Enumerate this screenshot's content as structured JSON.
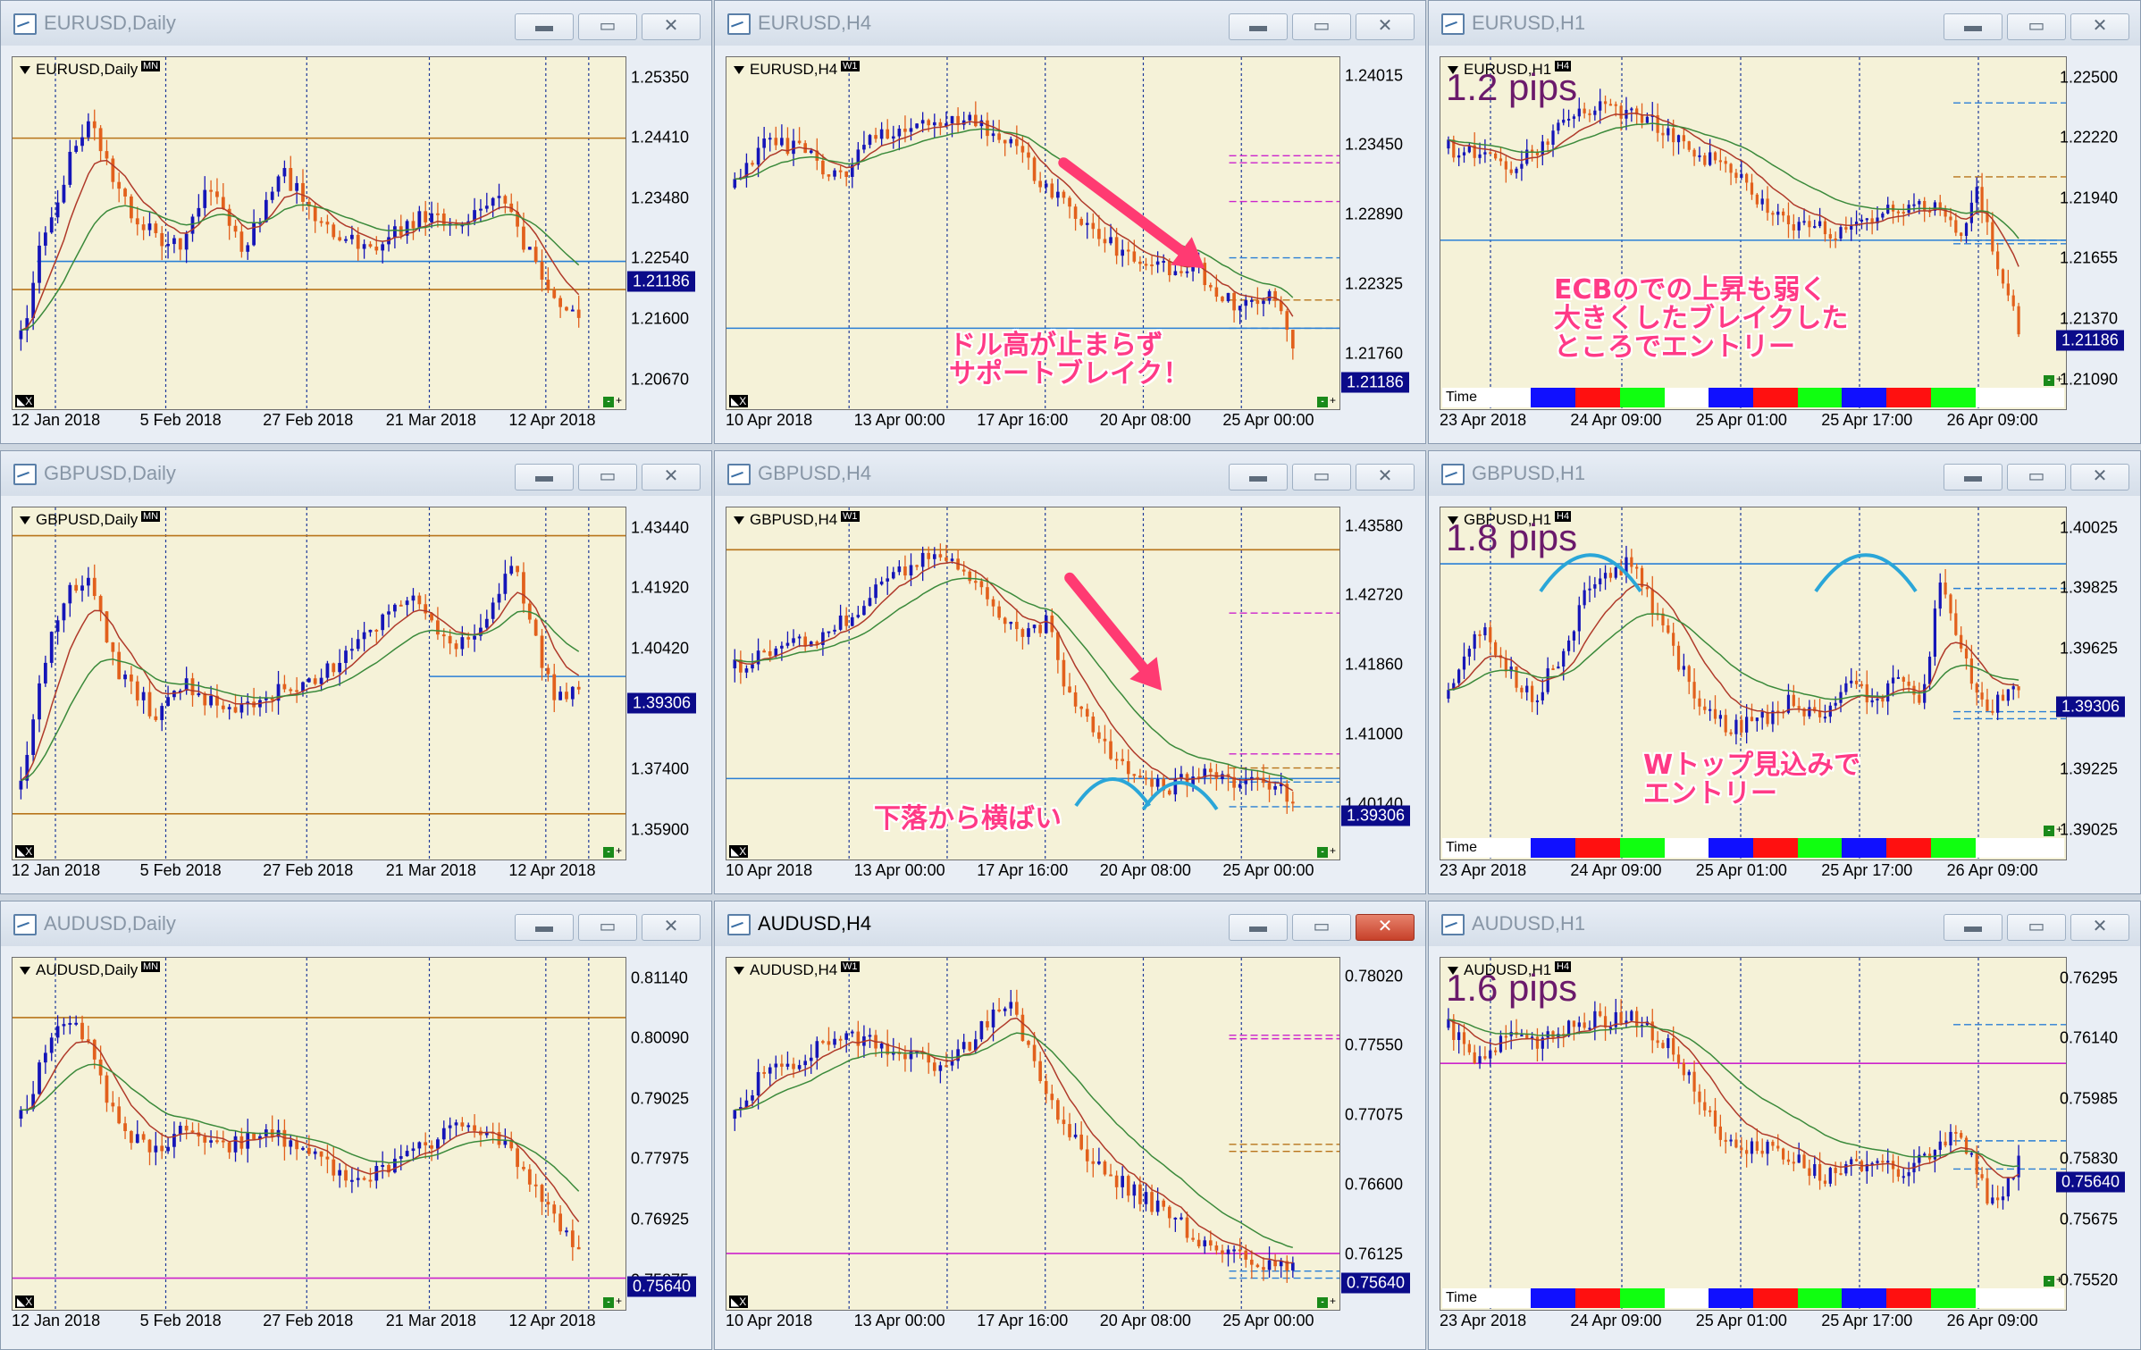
{
  "colors": {
    "bull": "#1515b8",
    "bear": "#e2601c",
    "ma_red": "#b03a2a",
    "ma_green": "#3b8a3b",
    "hline_orange": "#b8741a",
    "hline_blue": "#2a7fd6",
    "hline_magenta": "#cc22cc",
    "arrow_pink": "#ff3a72",
    "arc_blue": "#2aa6d8"
  },
  "windows": [
    {
      "title": "EURUSD,Daily",
      "symbol": "EURUSD,Daily",
      "tf_badge": "MN",
      "prices": [
        "1.25350",
        "1.24410",
        "1.23480",
        "1.22540",
        "1.21600",
        "1.20670"
      ],
      "current": "1.21186",
      "dates": [
        "12 Jan 2018",
        "5 Feb 2018",
        "27 Feb 2018",
        "21 Mar 2018",
        "12 Apr 2018"
      ]
    },
    {
      "title": "EURUSD,H4",
      "symbol": "EURUSD,H4",
      "tf_badge": "W1",
      "prices": [
        "1.24015",
        "1.23450",
        "1.22890",
        "1.22325",
        "1.21760"
      ],
      "current": "1.21186",
      "dates": [
        "10 Apr 2018",
        "13 Apr 00:00",
        "17 Apr 16:00",
        "20 Apr 08:00",
        "25 Apr 00:00"
      ],
      "annotation": [
        "ドル高が止まらず",
        "サポートブレイク！"
      ]
    },
    {
      "title": "EURUSD,H1",
      "symbol": "EURUSD,H1",
      "tf_badge": "H4",
      "pips": "1.2 pips",
      "prices": [
        "1.22500",
        "1.22220",
        "1.21940",
        "1.21655",
        "1.21370",
        "1.21090"
      ],
      "current": "1.21186",
      "dates": [
        "23 Apr 2018",
        "24 Apr 09:00",
        "25 Apr 01:00",
        "25 Apr 17:00",
        "26 Apr 09:00"
      ],
      "annotation": [
        "ECBのでの上昇も弱く",
        "大きくしたブレイクした",
        "ところでエントリー"
      ],
      "timebar": "Time"
    },
    {
      "title": "GBPUSD,Daily",
      "symbol": "GBPUSD,Daily",
      "tf_badge": "MN",
      "prices": [
        "1.43440",
        "1.41920",
        "1.40420",
        "1.38920",
        "1.37400",
        "1.35900"
      ],
      "current": "1.39306",
      "dates": [
        "12 Jan 2018",
        "5 Feb 2018",
        "27 Feb 2018",
        "21 Mar 2018",
        "12 Apr 2018"
      ]
    },
    {
      "title": "GBPUSD,H4",
      "symbol": "GBPUSD,H4",
      "tf_badge": "W1",
      "prices": [
        "1.43580",
        "1.42720",
        "1.41860",
        "1.41000",
        "1.40140"
      ],
      "current": "1.39306",
      "dates": [
        "10 Apr 2018",
        "13 Apr 00:00",
        "17 Apr 16:00",
        "20 Apr 08:00",
        "25 Apr 00:00"
      ],
      "annotation": [
        "下落から横ばい"
      ]
    },
    {
      "title": "GBPUSD,H1",
      "symbol": "GBPUSD,H1",
      "tf_badge": "H4",
      "pips": "1.8 pips",
      "prices": [
        "1.40025",
        "1.39825",
        "1.39625",
        "1.39425",
        "1.39225",
        "1.39025"
      ],
      "current": "1.39306",
      "dates": [
        "23 Apr 2018",
        "24 Apr 09:00",
        "25 Apr 01:00",
        "25 Apr 17:00",
        "26 Apr 09:00"
      ],
      "annotation": [
        "Wトップ見込みで",
        "エントリー"
      ],
      "timebar": "Time"
    },
    {
      "title": "AUDUSD,Daily",
      "symbol": "AUDUSD,Daily",
      "tf_badge": "MN",
      "prices": [
        "0.81140",
        "0.80090",
        "0.79025",
        "0.77975",
        "0.76925",
        "0.75875"
      ],
      "current": "0.75640",
      "dates": [
        "12 Jan 2018",
        "5 Feb 2018",
        "27 Feb 2018",
        "21 Mar 2018",
        "12 Apr 2018"
      ]
    },
    {
      "title": "AUDUSD,H4",
      "symbol": "AUDUSD,H4",
      "tf_badge": "W1",
      "prices": [
        "0.78020",
        "0.77550",
        "0.77075",
        "0.76600",
        "0.76125"
      ],
      "current": "0.75640",
      "dates": [
        "10 Apr 2018",
        "13 Apr 00:00",
        "17 Apr 16:00",
        "20 Apr 08:00",
        "25 Apr 00:00"
      ]
    },
    {
      "title": "AUDUSD,H1",
      "symbol": "AUDUSD,H1",
      "tf_badge": "H4",
      "pips": "1.6 pips",
      "prices": [
        "0.76295",
        "0.76140",
        "0.75985",
        "0.75830",
        "0.75675",
        "0.75520"
      ],
      "current": "0.75640",
      "dates": [
        "23 Apr 2018",
        "24 Apr 09:00",
        "25 Apr 01:00",
        "25 Apr 17:00",
        "26 Apr 09:00"
      ],
      "timebar": "Time"
    }
  ]
}
